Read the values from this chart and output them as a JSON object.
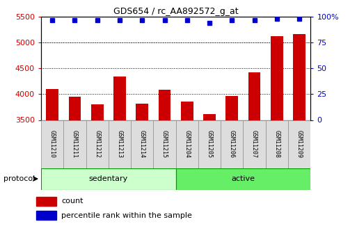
{
  "title": "GDS654 / rc_AA892572_g_at",
  "samples": [
    "GSM11210",
    "GSM11211",
    "GSM11212",
    "GSM11213",
    "GSM11214",
    "GSM11215",
    "GSM11204",
    "GSM11205",
    "GSM11206",
    "GSM11207",
    "GSM11208",
    "GSM11209"
  ],
  "counts": [
    4100,
    3950,
    3800,
    4340,
    3820,
    4090,
    3860,
    3610,
    3970,
    4430,
    5120,
    5170
  ],
  "percentile_ranks": [
    97,
    97,
    97,
    97,
    97,
    97,
    97,
    94,
    97,
    97,
    98,
    98
  ],
  "groups": [
    "sedentary",
    "sedentary",
    "sedentary",
    "sedentary",
    "sedentary",
    "sedentary",
    "active",
    "active",
    "active",
    "active",
    "active",
    "active"
  ],
  "sedentary_color": "#ccffcc",
  "active_color": "#66ee66",
  "group_border_color": "#009900",
  "bar_color": "#cc0000",
  "dot_color": "#0000cc",
  "label_box_color": "#dddddd",
  "label_box_edge": "#999999",
  "ylim_left": [
    3500,
    5500
  ],
  "yticks_left": [
    3500,
    4000,
    4500,
    5000,
    5500
  ],
  "ylim_right": [
    0,
    100
  ],
  "yticks_right": [
    0,
    25,
    50,
    75,
    100
  ],
  "ytick_right_labels": [
    "0",
    "25",
    "50",
    "75",
    "100%"
  ],
  "left_tick_color": "#cc0000",
  "right_tick_color": "#0000cc",
  "grid_lines": [
    4000,
    4500,
    5000
  ],
  "legend_count_label": "count",
  "legend_pct_label": "percentile rank within the sample",
  "protocol_label": "protocol",
  "bar_width": 0.55
}
